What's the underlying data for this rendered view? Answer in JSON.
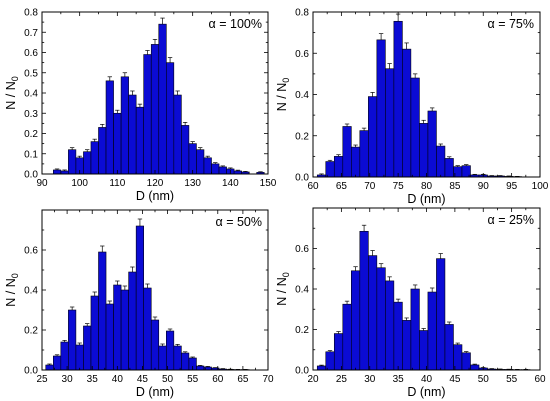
{
  "chart_data": [
    {
      "type": "bar",
      "annotation": "α = 100%",
      "xlabel": "D (nm)",
      "ylabel": "N / N",
      "ylabel_sub": "0",
      "xlim": [
        90,
        150
      ],
      "ylim": [
        0,
        0.8
      ],
      "xticks": [
        90,
        100,
        110,
        120,
        130,
        140,
        150
      ],
      "yticks": [
        0.0,
        0.1,
        0.2,
        0.3,
        0.4,
        0.5,
        0.6,
        0.7,
        0.8
      ],
      "bar_width": 2,
      "x": [
        94,
        96,
        98,
        100,
        102,
        104,
        106,
        108,
        110,
        112,
        114,
        116,
        118,
        120,
        122,
        124,
        126,
        128,
        130,
        132,
        134,
        136,
        138,
        140,
        142,
        144,
        148
      ],
      "values": [
        0.02,
        0.015,
        0.12,
        0.08,
        0.11,
        0.16,
        0.23,
        0.46,
        0.3,
        0.48,
        0.39,
        0.33,
        0.59,
        0.64,
        0.74,
        0.55,
        0.39,
        0.24,
        0.15,
        0.12,
        0.08,
        0.05,
        0.035,
        0.025,
        0.015,
        0.01,
        0.008
      ],
      "errors": [
        0.005,
        0.005,
        0.01,
        0.008,
        0.01,
        0.012,
        0.015,
        0.02,
        0.015,
        0.02,
        0.02,
        0.015,
        0.02,
        0.025,
        0.03,
        0.025,
        0.02,
        0.015,
        0.01,
        0.01,
        0.008,
        0.006,
        0.005,
        0.005,
        0.004,
        0.003,
        0.003
      ]
    },
    {
      "type": "bar",
      "annotation": "α = 75%",
      "xlabel": "D (nm)",
      "ylabel": "N / N",
      "ylabel_sub": "0",
      "xlim": [
        60,
        100
      ],
      "ylim": [
        0,
        0.8
      ],
      "xticks": [
        60,
        65,
        70,
        75,
        80,
        85,
        90,
        95,
        100
      ],
      "yticks": [
        0.0,
        0.2,
        0.4,
        0.6,
        0.8
      ],
      "bar_width": 1.5,
      "x": [
        61.5,
        63,
        64.5,
        66,
        67.5,
        69,
        70.5,
        72,
        73.5,
        75,
        76.5,
        78,
        79.5,
        81,
        82.5,
        84,
        85.5,
        87,
        88.5,
        90,
        91.5,
        93,
        94.5,
        96
      ],
      "values": [
        0.01,
        0.075,
        0.1,
        0.245,
        0.145,
        0.225,
        0.39,
        0.665,
        0.525,
        0.755,
        0.62,
        0.48,
        0.26,
        0.32,
        0.15,
        0.09,
        0.05,
        0.055,
        0.01,
        0.01,
        0.005,
        0.005,
        0.003,
        0.002
      ],
      "errors": [
        0.005,
        0.006,
        0.008,
        0.012,
        0.01,
        0.012,
        0.02,
        0.03,
        0.025,
        0.035,
        0.03,
        0.02,
        0.015,
        0.015,
        0.01,
        0.008,
        0.005,
        0.005,
        0.003,
        0.003,
        0.002,
        0.002,
        0.002,
        0.001
      ]
    },
    {
      "type": "bar",
      "annotation": "α = 50%",
      "xlabel": "D (nm)",
      "ylabel": "N / N",
      "ylabel_sub": "0",
      "xlim": [
        25,
        70
      ],
      "ylim": [
        0,
        0.8
      ],
      "xticks": [
        25,
        30,
        35,
        40,
        45,
        50,
        55,
        60,
        65,
        70
      ],
      "yticks": [
        0.0,
        0.2,
        0.4,
        0.6
      ],
      "bar_width": 1.5,
      "x": [
        26.5,
        28,
        29.5,
        31,
        32.5,
        34,
        35.5,
        37,
        38.5,
        40,
        41.5,
        43,
        44.5,
        46,
        47.5,
        49,
        50.5,
        52,
        53.5,
        55,
        56.5,
        58,
        59.5,
        61,
        62.5,
        64,
        65.5
      ],
      "values": [
        0.025,
        0.07,
        0.14,
        0.3,
        0.125,
        0.22,
        0.37,
        0.59,
        0.33,
        0.425,
        0.4,
        0.49,
        0.72,
        0.41,
        0.25,
        0.12,
        0.195,
        0.12,
        0.085,
        0.06,
        0.02,
        0.015,
        0.01,
        0.005,
        0.003,
        0.002,
        0.002
      ],
      "errors": [
        0.005,
        0.006,
        0.008,
        0.015,
        0.01,
        0.012,
        0.02,
        0.03,
        0.015,
        0.02,
        0.02,
        0.025,
        0.035,
        0.02,
        0.015,
        0.01,
        0.01,
        0.008,
        0.006,
        0.005,
        0.003,
        0.003,
        0.002,
        0.002,
        0.001,
        0.001,
        0.001
      ]
    },
    {
      "type": "bar",
      "annotation": "α = 25%",
      "xlabel": "D (nm)",
      "ylabel": "N / N",
      "ylabel_sub": "0",
      "xlim": [
        20,
        60
      ],
      "ylim": [
        0,
        0.8
      ],
      "xticks": [
        20,
        25,
        30,
        35,
        40,
        45,
        50,
        55,
        60
      ],
      "yticks": [
        0.0,
        0.2,
        0.4,
        0.6
      ],
      "bar_width": 1.5,
      "x": [
        21.5,
        23,
        24.5,
        26,
        27.5,
        29,
        30.5,
        32,
        33.5,
        35,
        36.5,
        38,
        39.5,
        41,
        42.5,
        44,
        45.5,
        47,
        48.5,
        50,
        51.5,
        53,
        54.5,
        56,
        57.5
      ],
      "values": [
        0.02,
        0.09,
        0.18,
        0.325,
        0.49,
        0.685,
        0.565,
        0.505,
        0.44,
        0.335,
        0.245,
        0.4,
        0.195,
        0.385,
        0.55,
        0.225,
        0.125,
        0.085,
        0.025,
        0.01,
        0.005,
        0.003,
        0.003,
        0.002,
        0.002
      ],
      "errors": [
        0.004,
        0.006,
        0.01,
        0.015,
        0.02,
        0.03,
        0.025,
        0.02,
        0.02,
        0.015,
        0.012,
        0.02,
        0.01,
        0.02,
        0.025,
        0.012,
        0.008,
        0.006,
        0.004,
        0.002,
        0.002,
        0.002,
        0.001,
        0.001,
        0.001
      ]
    }
  ]
}
